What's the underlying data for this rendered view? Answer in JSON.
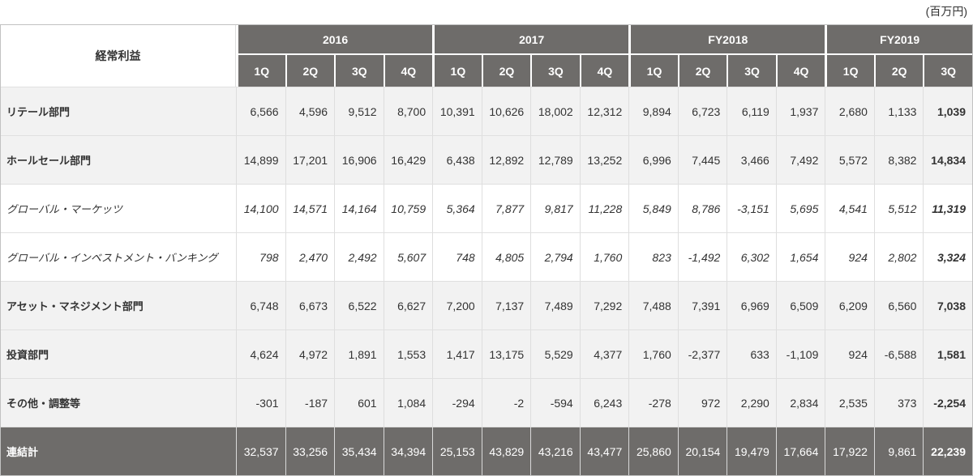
{
  "colors": {
    "header_bg": "#6E6C6A",
    "header_text": "#FFFFFF",
    "row_alt_bg": "#F2F2F2",
    "text": "#333333",
    "grid_line": "#DEDEDE",
    "outer_border": "#C2C2C2"
  },
  "chart_data": {
    "type": "table",
    "title": "経常利益",
    "unit_label": "(百万円)",
    "column_groups": [
      {
        "label": "2016",
        "quarters": [
          "1Q",
          "2Q",
          "3Q",
          "4Q"
        ]
      },
      {
        "label": "2017",
        "quarters": [
          "1Q",
          "2Q",
          "3Q",
          "4Q"
        ]
      },
      {
        "label": "FY2018",
        "quarters": [
          "1Q",
          "2Q",
          "3Q",
          "4Q"
        ]
      },
      {
        "label": "FY2019",
        "quarters": [
          "1Q",
          "2Q",
          "3Q"
        ]
      }
    ],
    "rows": [
      {
        "label": "リテール部門",
        "style": "segment",
        "values": [
          6566,
          4596,
          9512,
          8700,
          10391,
          10626,
          18002,
          12312,
          9894,
          6723,
          6119,
          1937,
          2680,
          1133,
          1039
        ]
      },
      {
        "label": "ホールセール部門",
        "style": "segment",
        "values": [
          14899,
          17201,
          16906,
          16429,
          6438,
          12892,
          12789,
          13252,
          6996,
          7445,
          3466,
          7492,
          5572,
          8382,
          14834
        ]
      },
      {
        "label": "グローバル・マーケッツ",
        "style": "sub_segment",
        "values": [
          14100,
          14571,
          14164,
          10759,
          5364,
          7877,
          9817,
          11228,
          5849,
          8786,
          -3151,
          5695,
          4541,
          5512,
          11319
        ]
      },
      {
        "label": "グローバル・インベストメント・バンキング",
        "style": "sub_segment",
        "values": [
          798,
          2470,
          2492,
          5607,
          748,
          4805,
          2794,
          1760,
          823,
          -1492,
          6302,
          1654,
          924,
          2802,
          3324
        ]
      },
      {
        "label": "アセット・マネジメント部門",
        "style": "segment",
        "values": [
          6748,
          6673,
          6522,
          6627,
          7200,
          7137,
          7489,
          7292,
          7488,
          7391,
          6969,
          6509,
          6209,
          6560,
          7038
        ]
      },
      {
        "label": "投資部門",
        "style": "segment",
        "values": [
          4624,
          4972,
          1891,
          1553,
          1417,
          13175,
          5529,
          4377,
          1760,
          -2377,
          633,
          -1109,
          924,
          -6588,
          1581
        ]
      },
      {
        "label": "その他・調整等",
        "style": "segment",
        "values": [
          -301,
          -187,
          601,
          1084,
          -294,
          -2,
          -594,
          6243,
          -278,
          972,
          2290,
          2834,
          2535,
          373,
          -2254
        ]
      },
      {
        "label": "連結計",
        "style": "total",
        "values": [
          32537,
          33256,
          35434,
          34394,
          25153,
          43829,
          43216,
          43477,
          25860,
          20154,
          19479,
          17664,
          17922,
          9861,
          22239
        ]
      }
    ]
  }
}
